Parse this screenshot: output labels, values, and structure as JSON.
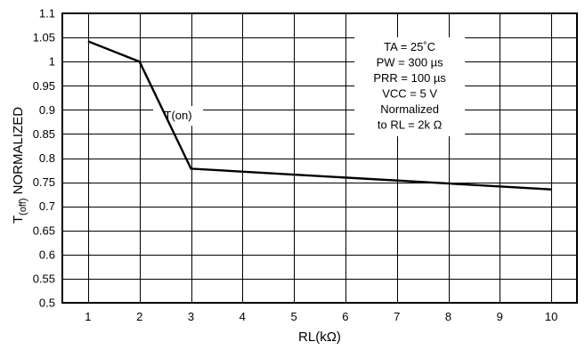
{
  "chart_data": {
    "type": "line",
    "xlabel": "RL(kΩ)",
    "ylabel": {
      "prefix": "T",
      "subscript": "(off)",
      "suffix": " NORMALIZED"
    },
    "x_ticks": [
      1,
      2,
      3,
      4,
      5,
      6,
      7,
      8,
      9,
      10
    ],
    "y_ticks": [
      "0.5",
      "0.55",
      "0.6",
      "0.65",
      "0.7",
      "0.75",
      "0.8",
      "0.85",
      "0.9",
      "0.95",
      "1",
      "1.05",
      "1.1"
    ],
    "xlim": [
      0.5,
      10.5
    ],
    "ylim": [
      0.5,
      1.1
    ],
    "grid": true,
    "series": [
      {
        "x": [
          1,
          2,
          3,
          10
        ],
        "y": [
          1.042,
          1.0,
          0.778,
          0.735
        ]
      }
    ],
    "annotations": {
      "curve_label": "T(on)",
      "conditions": [
        "TA = 25˚C",
        "PW = 300 µs",
        "PRR = 100 µs",
        "VCC = 5 V",
        "Normalized",
        "to RL = 2k Ω"
      ]
    }
  }
}
